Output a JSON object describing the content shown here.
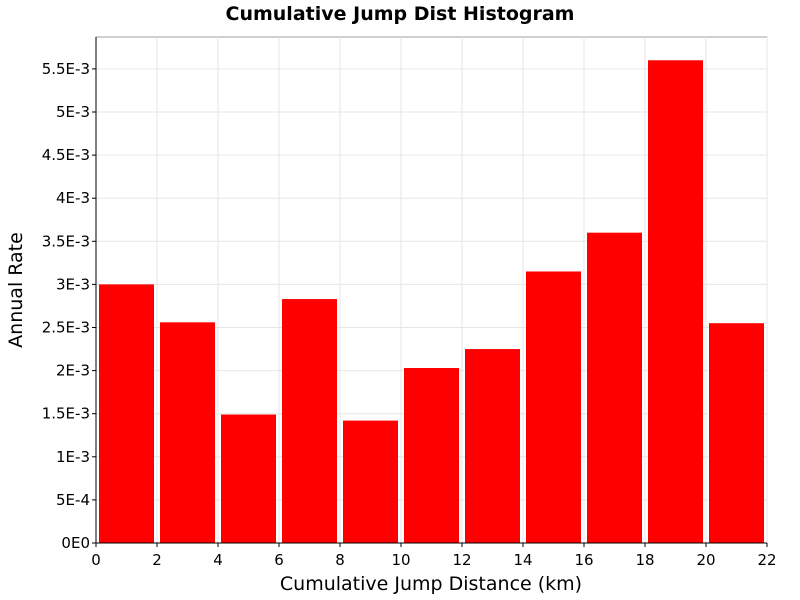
{
  "chart_data": {
    "type": "bar",
    "title": "Cumulative Jump Dist Histogram",
    "xlabel": "Cumulative Jump Distance (km)",
    "ylabel": "Annual Rate",
    "bin_edges": [
      0,
      2,
      4,
      6,
      8,
      10,
      12,
      14,
      16,
      18,
      20,
      22
    ],
    "values": [
      0.003,
      0.00256,
      0.00149,
      0.00283,
      0.00142,
      0.00203,
      0.00225,
      0.00315,
      0.0036,
      0.0056,
      0.00255
    ],
    "xlim": [
      0,
      22
    ],
    "ylim": [
      0,
      0.00587
    ],
    "x_ticks": [
      "0",
      "2",
      "4",
      "6",
      "8",
      "10",
      "12",
      "14",
      "16",
      "18",
      "20",
      "22"
    ],
    "y_ticks": [
      {
        "value": 0,
        "label": "0E0"
      },
      {
        "value": 0.0005,
        "label": "5E-4"
      },
      {
        "value": 0.001,
        "label": "1E-3"
      },
      {
        "value": 0.0015,
        "label": "1.5E-3"
      },
      {
        "value": 0.002,
        "label": "2E-3"
      },
      {
        "value": 0.0025,
        "label": "2.5E-3"
      },
      {
        "value": 0.003,
        "label": "3E-3"
      },
      {
        "value": 0.0035,
        "label": "3.5E-3"
      },
      {
        "value": 0.004,
        "label": "4E-3"
      },
      {
        "value": 0.0045,
        "label": "4.5E-3"
      },
      {
        "value": 0.005,
        "label": "5E-3"
      },
      {
        "value": 0.0055,
        "label": "5.5E-3"
      }
    ],
    "bar_color": "#ff0000",
    "grid": true,
    "legend": "none"
  }
}
